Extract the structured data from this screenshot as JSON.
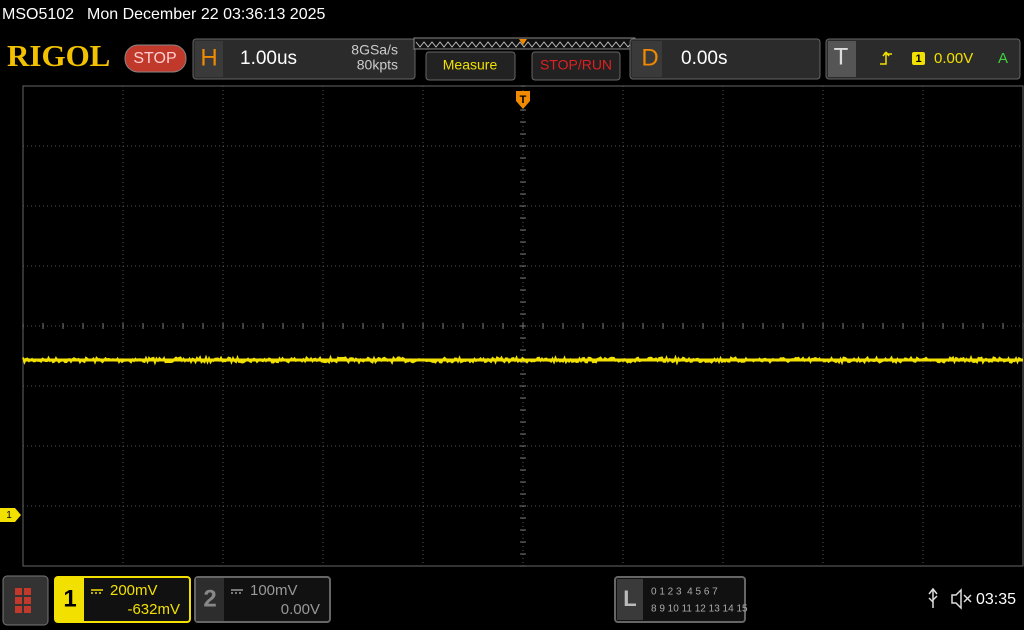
{
  "status_bar": {
    "model": "MSO5102",
    "datetime": "Mon December 22 03:36:13 2025"
  },
  "toolbar": {
    "brand": "RIGOL",
    "run_state": "STOP",
    "horizontal": {
      "label": "H",
      "timebase": "1.00us",
      "sample_rate": "8GSa/s",
      "memory_depth": "80kpts"
    },
    "measure": "Measure",
    "stop_run": "STOP/RUN",
    "delay": {
      "label": "D",
      "value": "0.00s"
    },
    "trigger": {
      "label": "T",
      "source": "1",
      "level": "0.00V",
      "mode": "A"
    }
  },
  "screen": {
    "trigger_marker": "T",
    "channel_marker": "1"
  },
  "channels": [
    {
      "number": "1",
      "scale": "200mV",
      "offset": "-632mV"
    },
    {
      "number": "2",
      "scale": "100mV",
      "offset": "0.00V"
    }
  ],
  "logic": {
    "label": "L",
    "rows": [
      "0 1 2 3  4 5 6 7",
      "8 9 10 11 12 13 14 15"
    ]
  },
  "clock": "03:35"
}
